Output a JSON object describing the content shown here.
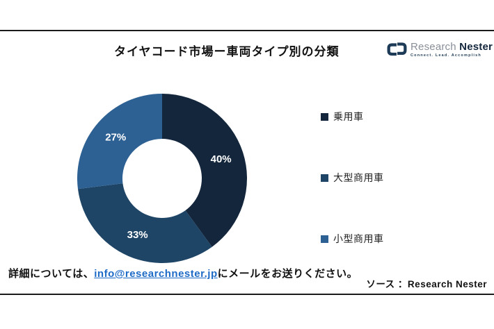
{
  "header": {
    "title": "タイヤコード市場ー車両タイプ別の分類"
  },
  "logo": {
    "brand_first": "Research",
    "brand_second": "Nester",
    "tagline": "Connect. Lead. Accomplish"
  },
  "chart_data": {
    "type": "pie",
    "donut": true,
    "title": "タイヤコード市場ー車両タイプ別の分類",
    "categories": [
      "乗用車",
      "大型商用車",
      "小型商用車"
    ],
    "values": [
      40,
      33,
      27
    ],
    "labels": [
      "40%",
      "33%",
      "27%"
    ],
    "colors": [
      "#13263C",
      "#1E4466",
      "#2D6093"
    ],
    "label_color": "#FFFFFF",
    "start_angle_deg": 0,
    "direction": "clockwise",
    "legend_position": "right",
    "inner_radius_ratio": 0.47
  },
  "footer": {
    "contact_prefix": "詳細については、",
    "contact_email": "info@researchnester.jp",
    "contact_suffix": "にメールをお送りください。",
    "source_label": "ソース ：Research Nester"
  },
  "colors": {
    "divider": "#1a1a1a",
    "link": "#1e6bc7",
    "title_text": "#111111"
  }
}
